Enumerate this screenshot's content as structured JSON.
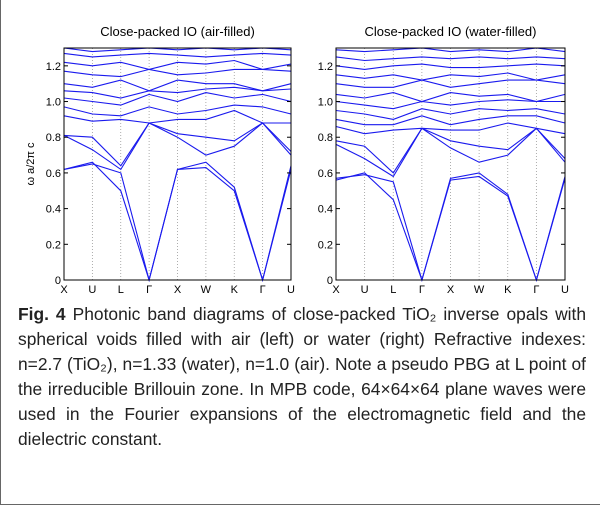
{
  "caption": {
    "label": "Fig. 4",
    "text": "Photonic band diagrams of close-packed TiO₂ inverse opals with spherical voids filled with air (left) or water (right) Refractive indexes: n=2.7 (TiO₂), n=1.33 (water), n=1.0 (air). Note a pseudo PBG at L point of the irreducible Brillouin zone. In MPB code, 64×64×64 plane waves were used in the Fourier expansions of the electromagnetic field and the dielectric constant."
  },
  "chart_data": [
    {
      "type": "line",
      "title": "Close-packed IO (air-filled)",
      "ylabel": "ω a/2π c",
      "xlabel": "",
      "x_ticks": [
        "X",
        "U",
        "L",
        "Γ",
        "X",
        "W",
        "K",
        "Γ",
        "U"
      ],
      "y_ticks": [
        "0",
        "0.2",
        "0.4",
        "0.6",
        "0.8",
        "1.0",
        "1.2"
      ],
      "ylim": [
        0,
        1.3
      ],
      "color": "#1a1aee",
      "grid": "vertical dotted at symmetry points",
      "series": [
        {
          "values": [
            0.62,
            0.66,
            0.5,
            0.0,
            0.62,
            0.63,
            0.5,
            0.0,
            0.62
          ]
        },
        {
          "values": [
            0.62,
            0.65,
            0.6,
            0.0,
            0.62,
            0.66,
            0.52,
            0.0,
            0.64
          ]
        },
        {
          "values": [
            0.81,
            0.73,
            0.62,
            0.88,
            0.8,
            0.7,
            0.75,
            0.88,
            0.7
          ]
        },
        {
          "values": [
            0.81,
            0.8,
            0.64,
            0.88,
            0.82,
            0.8,
            0.78,
            0.88,
            0.72
          ]
        },
        {
          "values": [
            0.92,
            0.89,
            0.9,
            0.88,
            0.9,
            0.9,
            0.95,
            0.88,
            0.88
          ]
        },
        {
          "values": [
            0.97,
            0.93,
            0.92,
            0.97,
            0.93,
            0.95,
            0.98,
            0.97,
            0.93
          ]
        },
        {
          "values": [
            1.02,
            1.0,
            0.98,
            1.04,
            1.0,
            1.05,
            1.02,
            1.04,
            1.0
          ]
        },
        {
          "values": [
            1.06,
            1.05,
            1.02,
            1.06,
            1.05,
            1.07,
            1.08,
            1.06,
            1.07
          ]
        },
        {
          "values": [
            1.1,
            1.08,
            1.12,
            1.06,
            1.12,
            1.1,
            1.1,
            1.06,
            1.1
          ]
        },
        {
          "values": [
            1.17,
            1.15,
            1.14,
            1.18,
            1.15,
            1.16,
            1.18,
            1.18,
            1.17
          ]
        },
        {
          "values": [
            1.22,
            1.2,
            1.22,
            1.18,
            1.22,
            1.21,
            1.23,
            1.18,
            1.21
          ]
        },
        {
          "values": [
            1.27,
            1.25,
            1.26,
            1.27,
            1.26,
            1.25,
            1.26,
            1.27,
            1.26
          ]
        },
        {
          "values": [
            1.3,
            1.28,
            1.29,
            1.3,
            1.29,
            1.3,
            1.29,
            1.3,
            1.29
          ]
        }
      ]
    },
    {
      "type": "line",
      "title": "Close-packed IO (water-filled)",
      "ylabel": "",
      "xlabel": "",
      "x_ticks": [
        "X",
        "U",
        "L",
        "Γ",
        "X",
        "W",
        "K",
        "Γ",
        "U"
      ],
      "y_ticks": [
        "0",
        "0.2",
        "0.4",
        "0.6",
        "0.8",
        "1.0",
        "1.2"
      ],
      "ylim": [
        0,
        1.3
      ],
      "color": "#1a1aee",
      "grid": "vertical dotted at symmetry points",
      "series": [
        {
          "values": [
            0.56,
            0.6,
            0.45,
            0.0,
            0.56,
            0.58,
            0.47,
            0.0,
            0.57
          ]
        },
        {
          "values": [
            0.57,
            0.59,
            0.55,
            0.0,
            0.57,
            0.6,
            0.48,
            0.0,
            0.58
          ]
        },
        {
          "values": [
            0.76,
            0.68,
            0.58,
            0.85,
            0.74,
            0.66,
            0.7,
            0.85,
            0.66
          ]
        },
        {
          "values": [
            0.78,
            0.75,
            0.6,
            0.85,
            0.78,
            0.75,
            0.73,
            0.85,
            0.68
          ]
        },
        {
          "values": [
            0.86,
            0.82,
            0.84,
            0.85,
            0.84,
            0.84,
            0.88,
            0.85,
            0.82
          ]
        },
        {
          "values": [
            0.9,
            0.87,
            0.87,
            0.92,
            0.87,
            0.9,
            0.92,
            0.92,
            0.88
          ]
        },
        {
          "values": [
            0.95,
            0.93,
            0.9,
            0.96,
            0.93,
            0.96,
            0.95,
            0.96,
            0.93
          ]
        },
        {
          "values": [
            1.0,
            0.98,
            0.96,
            1.0,
            0.98,
            1.0,
            1.01,
            1.0,
            1.0
          ]
        },
        {
          "values": [
            1.04,
            1.02,
            1.05,
            1.0,
            1.05,
            1.03,
            1.04,
            1.0,
            1.04
          ]
        },
        {
          "values": [
            1.1,
            1.08,
            1.08,
            1.12,
            1.08,
            1.1,
            1.12,
            1.12,
            1.1
          ]
        },
        {
          "values": [
            1.15,
            1.13,
            1.15,
            1.12,
            1.15,
            1.14,
            1.16,
            1.12,
            1.15
          ]
        },
        {
          "values": [
            1.2,
            1.18,
            1.2,
            1.21,
            1.19,
            1.19,
            1.2,
            1.21,
            1.2
          ]
        },
        {
          "values": [
            1.25,
            1.23,
            1.24,
            1.25,
            1.24,
            1.25,
            1.24,
            1.25,
            1.24
          ]
        },
        {
          "values": [
            1.29,
            1.28,
            1.29,
            1.3,
            1.28,
            1.29,
            1.28,
            1.3,
            1.28
          ]
        }
      ]
    }
  ]
}
